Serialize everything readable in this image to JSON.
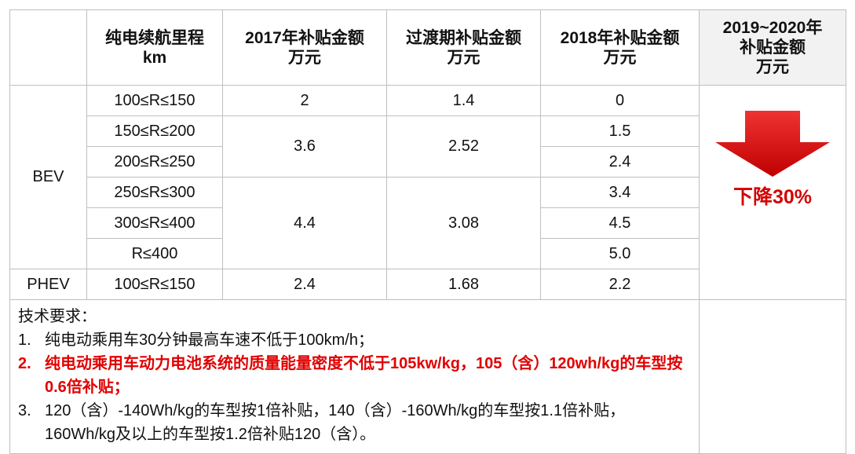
{
  "table": {
    "header": [
      [
        "纯电续航里程",
        "km"
      ],
      [
        "2017年补贴金额",
        "万元"
      ],
      [
        "过渡期补贴金额",
        "万元"
      ],
      [
        "2018年补贴金额",
        "万元"
      ],
      [
        "2019~2020年",
        "补贴金额",
        "万元"
      ]
    ],
    "bev": {
      "label": "BEV",
      "ranges": [
        "100≤R≤150",
        "150≤R≤200",
        "200≤R≤250",
        "250≤R≤300",
        "300≤R≤400",
        "R≤400"
      ],
      "subsidy_2017": [
        "2",
        "3.6",
        "4.4"
      ],
      "transition": [
        "1.4",
        "2.52",
        "3.08"
      ],
      "subsidy_2018": [
        "0",
        "1.5",
        "2.4",
        "3.4",
        "4.5",
        "5.0"
      ]
    },
    "phev": {
      "label": "PHEV",
      "range": "100≤R≤150",
      "subsidy_2017": "2.4",
      "transition": "1.68",
      "subsidy_2018": "2.2"
    },
    "change": "下降30%",
    "notes": {
      "title": "技术要求：",
      "items": [
        {
          "number": "1.",
          "text": "纯电动乘用车30分钟最高车速不低于100km/h；"
        },
        {
          "number": "2.",
          "text": "纯电动乘用车动力电池系统的质量能量密度不低于105kw/kg，105（含）120wh/kg的车型按0.6倍补贴；"
        },
        {
          "number": "3.",
          "text": "120（含）-140Wh/kg的车型按1倍补贴，140（含）-160Wh/kg的车型按1.1倍补贴，160Wh/kg及以上的车型按1.2倍补贴120（含）。"
        }
      ]
    }
  }
}
